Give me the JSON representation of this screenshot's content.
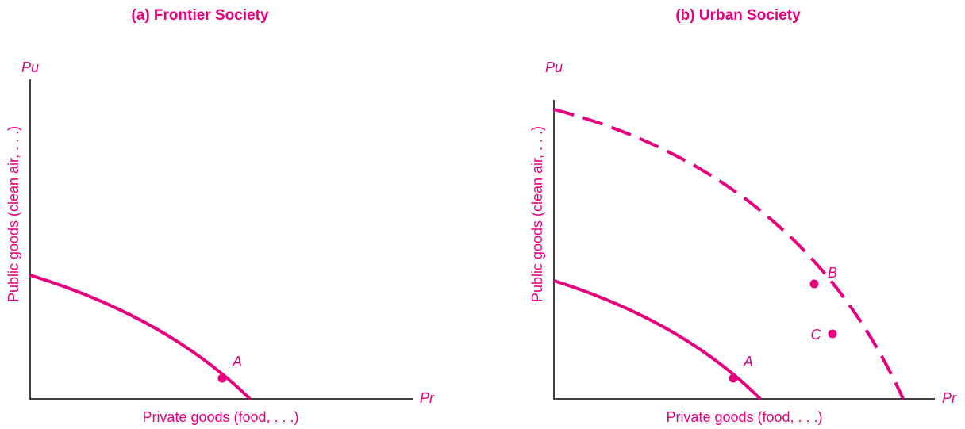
{
  "panels": [
    {
      "title": "(a) Frontier Society",
      "y_axis_symbol": "Pu",
      "x_axis_symbol": "Pr",
      "y_axis_label": "Public goods (clean air, . . .)",
      "x_axis_label": "Private goods (food, . . .)",
      "points": [
        {
          "label": "A"
        }
      ]
    },
    {
      "title": "(b) Urban Society",
      "y_axis_symbol": "Pu",
      "x_axis_symbol": "Pr",
      "y_axis_label": "Public goods (clean air, . . .)",
      "x_axis_label": "Private goods (food, . . .)",
      "points": [
        {
          "label": "A"
        },
        {
          "label": "B"
        },
        {
          "label": "C"
        }
      ]
    }
  ]
}
